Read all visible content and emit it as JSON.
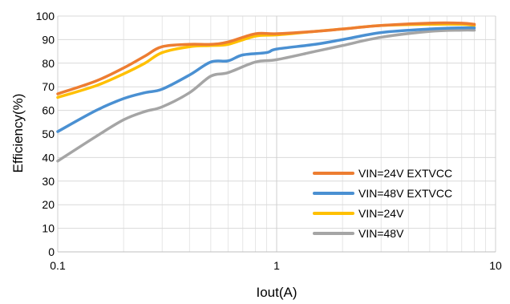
{
  "chart_data": {
    "type": "line",
    "xlabel": "Iout(A)",
    "ylabel": "Efficiency(%)",
    "x_scale": "log",
    "xlim": [
      0.1,
      10
    ],
    "ylim": [
      0,
      100
    ],
    "x_ticks": [
      0.1,
      1,
      10
    ],
    "x_tick_labels": [
      "0.1",
      "1",
      "10"
    ],
    "y_ticks": [
      0,
      10,
      20,
      30,
      40,
      50,
      60,
      70,
      80,
      90,
      100
    ],
    "y_tick_labels": [
      "0",
      "10",
      "20",
      "30",
      "40",
      "50",
      "60",
      "70",
      "80",
      "90",
      "100"
    ],
    "grid": true,
    "legend_position": "bottom-right",
    "series": [
      {
        "name": "VIN=24V EXTVCC",
        "color": "#ED7D31",
        "points": [
          [
            0.1,
            67
          ],
          [
            0.15,
            72.5
          ],
          [
            0.2,
            78
          ],
          [
            0.25,
            83
          ],
          [
            0.3,
            87
          ],
          [
            0.4,
            88
          ],
          [
            0.5,
            88
          ],
          [
            0.6,
            89
          ],
          [
            0.8,
            92.5
          ],
          [
            1,
            92.5
          ],
          [
            1.5,
            93.5
          ],
          [
            2,
            94.5
          ],
          [
            3,
            96
          ],
          [
            5,
            97
          ],
          [
            7,
            97
          ],
          [
            8,
            96.5
          ]
        ]
      },
      {
        "name": "VIN=48V EXTVCC",
        "color": "#4A90D2",
        "points": [
          [
            0.1,
            51
          ],
          [
            0.15,
            60
          ],
          [
            0.2,
            65
          ],
          [
            0.25,
            67.5
          ],
          [
            0.3,
            69
          ],
          [
            0.4,
            75
          ],
          [
            0.5,
            80.5
          ],
          [
            0.6,
            81
          ],
          [
            0.7,
            83.5
          ],
          [
            0.9,
            84.5
          ],
          [
            1,
            86
          ],
          [
            1.5,
            88
          ],
          [
            2,
            90
          ],
          [
            3,
            93
          ],
          [
            5,
            94.5
          ],
          [
            7,
            95
          ],
          [
            8,
            95
          ]
        ]
      },
      {
        "name": "VIN=24V",
        "color": "#FFC000",
        "points": [
          [
            0.1,
            65.5
          ],
          [
            0.15,
            70.5
          ],
          [
            0.2,
            75.5
          ],
          [
            0.25,
            80
          ],
          [
            0.3,
            84.5
          ],
          [
            0.4,
            87
          ],
          [
            0.5,
            87.5
          ],
          [
            0.6,
            88
          ],
          [
            0.8,
            91.5
          ],
          [
            1,
            92
          ],
          [
            1.5,
            93.5
          ],
          [
            2,
            94.5
          ],
          [
            3,
            96
          ],
          [
            5,
            96.5
          ],
          [
            7,
            96.5
          ],
          [
            8,
            96
          ]
        ]
      },
      {
        "name": "VIN=48V",
        "color": "#A5A5A5",
        "points": [
          [
            0.1,
            38.5
          ],
          [
            0.15,
            49
          ],
          [
            0.2,
            56
          ],
          [
            0.25,
            59.5
          ],
          [
            0.3,
            61.5
          ],
          [
            0.4,
            67.5
          ],
          [
            0.5,
            74.5
          ],
          [
            0.6,
            76
          ],
          [
            0.8,
            80.5
          ],
          [
            1,
            81.5
          ],
          [
            1.5,
            85
          ],
          [
            2,
            87.5
          ],
          [
            3,
            91
          ],
          [
            5,
            93.5
          ],
          [
            7,
            94
          ],
          [
            8,
            94
          ]
        ]
      }
    ]
  }
}
